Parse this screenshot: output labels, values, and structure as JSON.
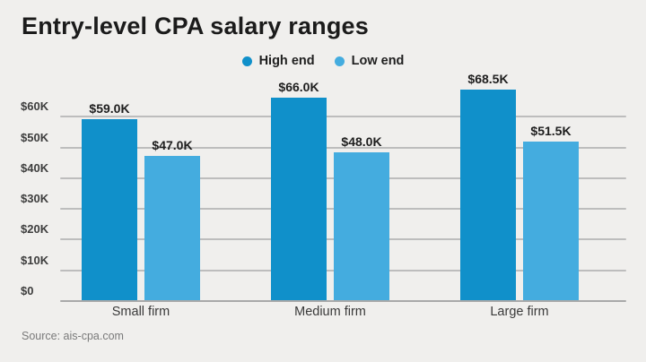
{
  "chart_data": {
    "type": "bar",
    "title": "Entry-level CPA salary ranges",
    "source": "Source: ais-cpa.com",
    "categories": [
      "Small firm",
      "Medium firm",
      "Large firm"
    ],
    "series": [
      {
        "name": "High end",
        "color": "#1090ca",
        "values": [
          59.0,
          66.0,
          68.5
        ],
        "value_labels": [
          "$59.0K",
          "$66.0K",
          "$68.5K"
        ]
      },
      {
        "name": "Low end",
        "color": "#44acdf",
        "values": [
          47.0,
          48.0,
          51.5
        ],
        "value_labels": [
          "$47.0K",
          "$48.0K",
          "$51.5K"
        ]
      }
    ],
    "y_axis": {
      "unit": "USD thousands",
      "ylim": [
        0,
        60
      ],
      "ticks": [
        0,
        10,
        20,
        30,
        40,
        50,
        60
      ],
      "tick_labels": [
        "$0",
        "$10K",
        "$20K",
        "$30K",
        "$40K",
        "$50K",
        "$60K"
      ]
    },
    "legend_position": "top-center",
    "grid": true
  },
  "colors": {
    "background": "#f0efed",
    "gridline": "#bdbdbd",
    "axis_line": "#a9a9a9",
    "high_end": "#1090ca",
    "low_end": "#44acdf",
    "title_text": "#1b1b1b",
    "source_text": "#7a7a7a"
  }
}
